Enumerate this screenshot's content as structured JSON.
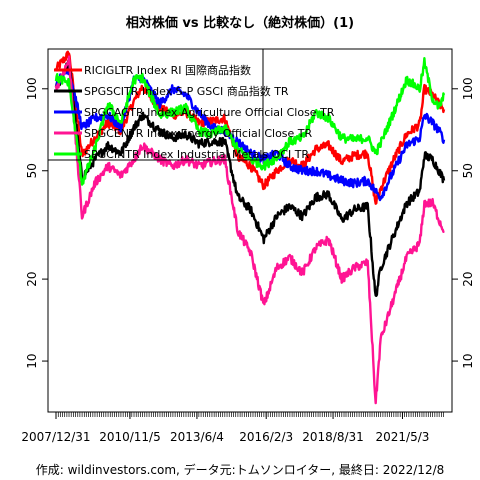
{
  "chart_data": {
    "type": "line",
    "title": "相対株価 vs 比較なし（絶対株価）(1)",
    "caption": "作成: wildinvestors.com, データ元:トムソンロイター, 最終日: 2022/12/8",
    "x_tick_labels": [
      "2007/12/31",
      "2010/11/5",
      "2013/6/4",
      "2016/2/3",
      "2018/8/31",
      "2021/5/3"
    ],
    "x_range": [
      "2007/12/31",
      "2022/12/8"
    ],
    "y_scale": "log",
    "y_ticks": [
      10,
      20,
      50,
      100
    ],
    "y_range": [
      6.5,
      140
    ],
    "grid": false,
    "legend_position": "top-left",
    "series": [
      {
        "name": "RICIGLTR Index RI 国際商品指数",
        "color": "#ff0000",
        "x": [
          "2007/12/31",
          "2008/7/1",
          "2008/12/31",
          "2009/6/30",
          "2009/12/31",
          "2010/6/30",
          "2010/12/31",
          "2011/4/29",
          "2011/12/30",
          "2012/6/29",
          "2012/12/31",
          "2013/6/28",
          "2013/12/31",
          "2014/6/30",
          "2014/12/31",
          "2015/6/30",
          "2015/12/31",
          "2016/6/30",
          "2016/12/30",
          "2017/6/30",
          "2017/12/29",
          "2018/6/29",
          "2018/12/31",
          "2019/6/28",
          "2019/12/31",
          "2020/4/21",
          "2020/6/30",
          "2020/12/31",
          "2021/6/30",
          "2021/12/31",
          "2022/3/8",
          "2022/6/30",
          "2022/9/30",
          "2022/12/8"
        ],
        "values": [
          118,
          135,
          57,
          66,
          75,
          70,
          90,
          102,
          85,
          80,
          82,
          75,
          76,
          78,
          56,
          52,
          44,
          50,
          55,
          52,
          60,
          62,
          54,
          57,
          58,
          38,
          43,
          55,
          68,
          74,
          100,
          95,
          88,
          84
        ]
      },
      {
        "name": "SPGSCITR Index S-P GSCI 商品指数 TR",
        "color": "#000000",
        "x": [
          "2007/12/31",
          "2008/7/1",
          "2008/12/31",
          "2009/6/30",
          "2009/12/31",
          "2010/6/30",
          "2010/12/31",
          "2011/4/29",
          "2011/12/30",
          "2012/6/29",
          "2012/12/31",
          "2013/6/28",
          "2013/12/31",
          "2014/6/30",
          "2014/12/31",
          "2015/6/30",
          "2015/12/31",
          "2016/6/30",
          "2016/12/30",
          "2017/6/30",
          "2017/12/29",
          "2018/6/29",
          "2018/12/31",
          "2019/6/28",
          "2019/12/31",
          "2020/4/21",
          "2020/6/30",
          "2020/12/31",
          "2021/6/30",
          "2021/12/31",
          "2022/3/8",
          "2022/6/30",
          "2022/9/30",
          "2022/12/8"
        ],
        "values": [
          100,
          125,
          47,
          55,
          62,
          58,
          72,
          80,
          70,
          66,
          68,
          63,
          64,
          64,
          40,
          36,
          28,
          34,
          37,
          34,
          40,
          41,
          33,
          36,
          37,
          17,
          22,
          29,
          38,
          42,
          57,
          55,
          50,
          46
        ]
      },
      {
        "name": "SPGCAGTR Index Agriculture Official Close TR",
        "color": "#0000ff",
        "x": [
          "2007/12/31",
          "2008/7/1",
          "2008/12/31",
          "2009/6/30",
          "2009/12/31",
          "2010/6/30",
          "2010/12/31",
          "2011/4/29",
          "2011/12/30",
          "2012/6/29",
          "2012/12/31",
          "2013/6/28",
          "2013/12/31",
          "2014/6/30",
          "2014/12/31",
          "2015/6/30",
          "2015/12/31",
          "2016/6/30",
          "2016/12/30",
          "2017/6/30",
          "2017/12/29",
          "2018/6/29",
          "2018/12/31",
          "2019/6/28",
          "2019/12/31",
          "2020/4/21",
          "2020/6/30",
          "2020/12/31",
          "2021/6/30",
          "2021/12/31",
          "2022/3/8",
          "2022/6/30",
          "2022/9/30",
          "2022/12/8"
        ],
        "values": [
          105,
          118,
          72,
          78,
          80,
          72,
          108,
          110,
          88,
          100,
          95,
          82,
          72,
          70,
          64,
          58,
          55,
          58,
          52,
          50,
          50,
          48,
          46,
          45,
          46,
          42,
          40,
          50,
          62,
          66,
          80,
          75,
          70,
          65
        ]
      },
      {
        "name": "SPGCENTR Index Energy Official Close TR",
        "color": "#ff1493",
        "x": [
          "2007/12/31",
          "2008/7/1",
          "2008/12/31",
          "2009/6/30",
          "2009/12/31",
          "2010/6/30",
          "2010/12/31",
          "2011/4/29",
          "2011/12/30",
          "2012/6/29",
          "2012/12/31",
          "2013/6/28",
          "2013/12/31",
          "2014/6/30",
          "2014/12/31",
          "2015/6/30",
          "2015/12/31",
          "2016/6/30",
          "2016/12/30",
          "2017/6/30",
          "2017/12/29",
          "2018/6/29",
          "2018/12/31",
          "2019/6/28",
          "2019/12/31",
          "2020/4/21",
          "2020/6/30",
          "2020/12/31",
          "2021/6/30",
          "2021/12/31",
          "2022/3/8",
          "2022/6/30",
          "2022/9/30",
          "2022/12/8"
        ],
        "values": [
          100,
          128,
          34,
          45,
          52,
          48,
          55,
          62,
          55,
          52,
          55,
          52,
          54,
          55,
          30,
          25,
          16,
          22,
          24,
          21,
          26,
          28,
          20,
          22,
          23,
          7,
          12,
          17,
          24,
          27,
          38,
          38,
          33,
          30
        ]
      },
      {
        "name": "SPGCINTR Index Industrial Metals OCI TR",
        "color": "#00ff00",
        "x": [
          "2007/12/31",
          "2008/7/1",
          "2008/12/31",
          "2009/6/30",
          "2009/12/31",
          "2010/6/30",
          "2010/12/31",
          "2011/4/29",
          "2011/12/30",
          "2012/6/29",
          "2012/12/31",
          "2013/6/28",
          "2013/12/31",
          "2014/6/30",
          "2014/12/31",
          "2015/6/30",
          "2015/12/31",
          "2016/6/30",
          "2016/12/30",
          "2017/6/30",
          "2017/12/29",
          "2018/6/29",
          "2018/12/31",
          "2019/6/28",
          "2019/12/31",
          "2020/4/21",
          "2020/6/30",
          "2020/12/31",
          "2021/6/30",
          "2021/12/31",
          "2022/3/8",
          "2022/6/30",
          "2022/9/30",
          "2022/12/8"
        ],
        "values": [
          110,
          105,
          45,
          60,
          88,
          75,
          108,
          110,
          80,
          82,
          85,
          70,
          68,
          72,
          60,
          55,
          52,
          56,
          64,
          66,
          82,
          78,
          66,
          65,
          66,
          58,
          63,
          82,
          108,
          100,
          125,
          92,
          85,
          95
        ]
      }
    ]
  }
}
